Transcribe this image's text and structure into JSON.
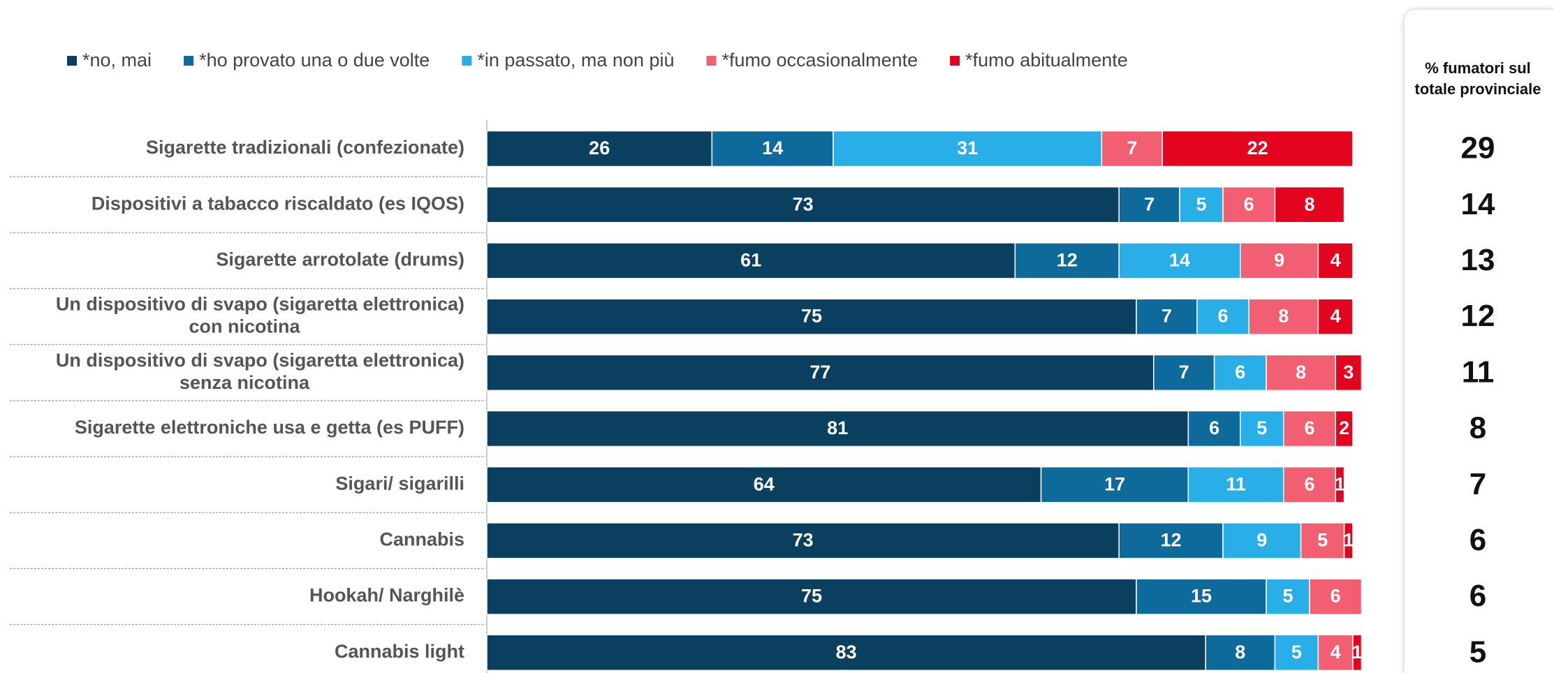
{
  "chart_data": {
    "type": "stacked_bar_horizontal",
    "categories": [
      "Sigarette tradizionali (confezionate)",
      "Dispositivi a tabacco riscaldato (es IQOS)",
      "Sigarette arrotolate (drums)",
      "Un dispositivo di svapo (sigaretta elettronica) con nicotina",
      "Un dispositivo di svapo (sigaretta elettronica) senza nicotina",
      "Sigarette elettroniche usa e getta (es PUFF)",
      "Sigari/ sigarilli",
      "Cannabis",
      "Hookah/ Narghilè",
      "Cannabis light"
    ],
    "series": [
      {
        "name": "*no, mai",
        "color": "#0b3f5f",
        "values": [
          26,
          73,
          61,
          75,
          77,
          81,
          64,
          73,
          75,
          83
        ]
      },
      {
        "name": "*ho provato una o due volte",
        "color": "#0f6a9c",
        "values": [
          14,
          7,
          12,
          7,
          7,
          6,
          17,
          12,
          15,
          8
        ]
      },
      {
        "name": "*in passato, ma non più",
        "color": "#29aee8",
        "values": [
          31,
          5,
          14,
          6,
          6,
          5,
          11,
          9,
          5,
          5
        ]
      },
      {
        "name": "*fumo occasionalmente",
        "color": "#f25f73",
        "values": [
          7,
          6,
          9,
          8,
          8,
          6,
          6,
          5,
          6,
          4
        ]
      },
      {
        "name": "*fumo abitualmente",
        "color": "#e3051f",
        "values": [
          22,
          8,
          4,
          4,
          3,
          2,
          1,
          1,
          0,
          1
        ]
      }
    ],
    "xlim": [
      0,
      100
    ],
    "side_header": [
      "% fumatori sul",
      "totale provinciale"
    ],
    "side_values": [
      29,
      14,
      13,
      12,
      11,
      8,
      7,
      6,
      6,
      5
    ]
  }
}
